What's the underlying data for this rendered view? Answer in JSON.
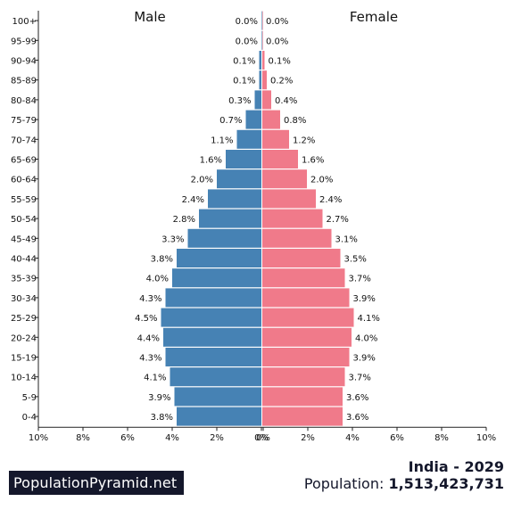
{
  "site": {
    "brand": "PopulationPyramid.net"
  },
  "footer": {
    "country_year": "India - 2029",
    "population_label": "Population:",
    "population_value": "1,513,423,731"
  },
  "colors": {
    "male": "#4682b4",
    "female": "#f07a8a"
  },
  "chart_data": {
    "type": "bar",
    "orientation": "horizontal-pyramid",
    "left_title": "Male",
    "right_title": "Female",
    "categories": [
      "100+",
      "95-99",
      "90-94",
      "85-89",
      "80-84",
      "75-79",
      "70-74",
      "65-69",
      "60-64",
      "55-59",
      "50-54",
      "45-49",
      "40-44",
      "35-39",
      "30-34",
      "25-29",
      "20-24",
      "15-19",
      "10-14",
      "5-9",
      "0-4"
    ],
    "series": [
      {
        "name": "Male",
        "values": [
          0.0,
          0.0,
          0.1,
          0.1,
          0.3,
          0.7,
          1.1,
          1.6,
          2.0,
          2.4,
          2.8,
          3.3,
          3.8,
          4.0,
          4.3,
          4.5,
          4.4,
          4.3,
          4.1,
          3.9,
          3.8
        ]
      },
      {
        "name": "Female",
        "values": [
          0.0,
          0.0,
          0.1,
          0.2,
          0.4,
          0.8,
          1.2,
          1.6,
          2.0,
          2.4,
          2.7,
          3.1,
          3.5,
          3.7,
          3.9,
          4.1,
          4.0,
          3.9,
          3.7,
          3.6,
          3.6
        ]
      }
    ],
    "value_labels": {
      "Male": [
        "0.0%",
        "0.0%",
        "0.1%",
        "0.1%",
        "0.3%",
        "0.7%",
        "1.1%",
        "1.6%",
        "2.0%",
        "2.4%",
        "2.8%",
        "3.3%",
        "3.8%",
        "4.0%",
        "4.3%",
        "4.5%",
        "4.4%",
        "4.3%",
        "4.1%",
        "3.9%",
        "3.8%"
      ],
      "Female": [
        "0.0%",
        "0.0%",
        "0.1%",
        "0.2%",
        "0.4%",
        "0.8%",
        "1.2%",
        "1.6%",
        "2.0%",
        "2.4%",
        "2.7%",
        "3.1%",
        "3.5%",
        "3.7%",
        "3.9%",
        "4.1%",
        "4.0%",
        "3.9%",
        "3.7%",
        "3.6%",
        "3.6%"
      ]
    },
    "x_tick_labels_left": [
      "10%",
      "8%",
      "6%",
      "4%",
      "2%",
      "0%"
    ],
    "x_tick_labels_right": [
      "0%",
      "2%",
      "4%",
      "6%",
      "8%",
      "10%"
    ],
    "xlim": [
      -10,
      10
    ],
    "grid": false
  }
}
